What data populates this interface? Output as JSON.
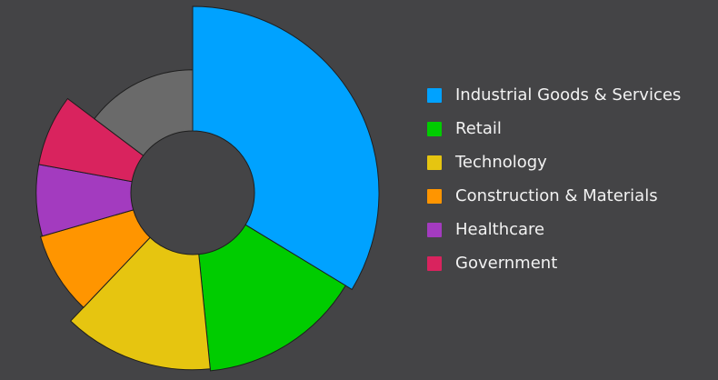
{
  "chart_data": {
    "type": "pie",
    "subtype": "variable-radius donut",
    "series": [
      {
        "name": "Industrial Goods & Services",
        "value": 32,
        "color": "#00a2ff",
        "radius": 10
      },
      {
        "name": "Retail",
        "value": 14,
        "color": "#00cc00",
        "radius": 9.6
      },
      {
        "name": "Technology",
        "value": 13,
        "color": "#e6c510",
        "radius": 9.5
      },
      {
        "name": "Construction & Materials",
        "value": 8,
        "color": "#ff9500",
        "radius": 8.5
      },
      {
        "name": "Healthcare",
        "value": 7,
        "color": "#a33bbf",
        "radius": 8.4
      },
      {
        "name": "Government",
        "value": 7,
        "color": "#d9235e",
        "radius": 8.4
      },
      {
        "name": "",
        "value": 14,
        "color": "#6a6a6a",
        "radius": 6.6
      }
    ],
    "legend_position": "right"
  },
  "legend": {
    "items": [
      {
        "label": "Industrial Goods & Services",
        "color": "#00a2ff"
      },
      {
        "label": "Retail",
        "color": "#00cc00"
      },
      {
        "label": "Technology",
        "color": "#e6c510"
      },
      {
        "label": "Construction & Materials",
        "color": "#ff9500"
      },
      {
        "label": "Healthcare",
        "color": "#a33bbf"
      },
      {
        "label": "Government",
        "color": "#d9235e"
      }
    ]
  }
}
